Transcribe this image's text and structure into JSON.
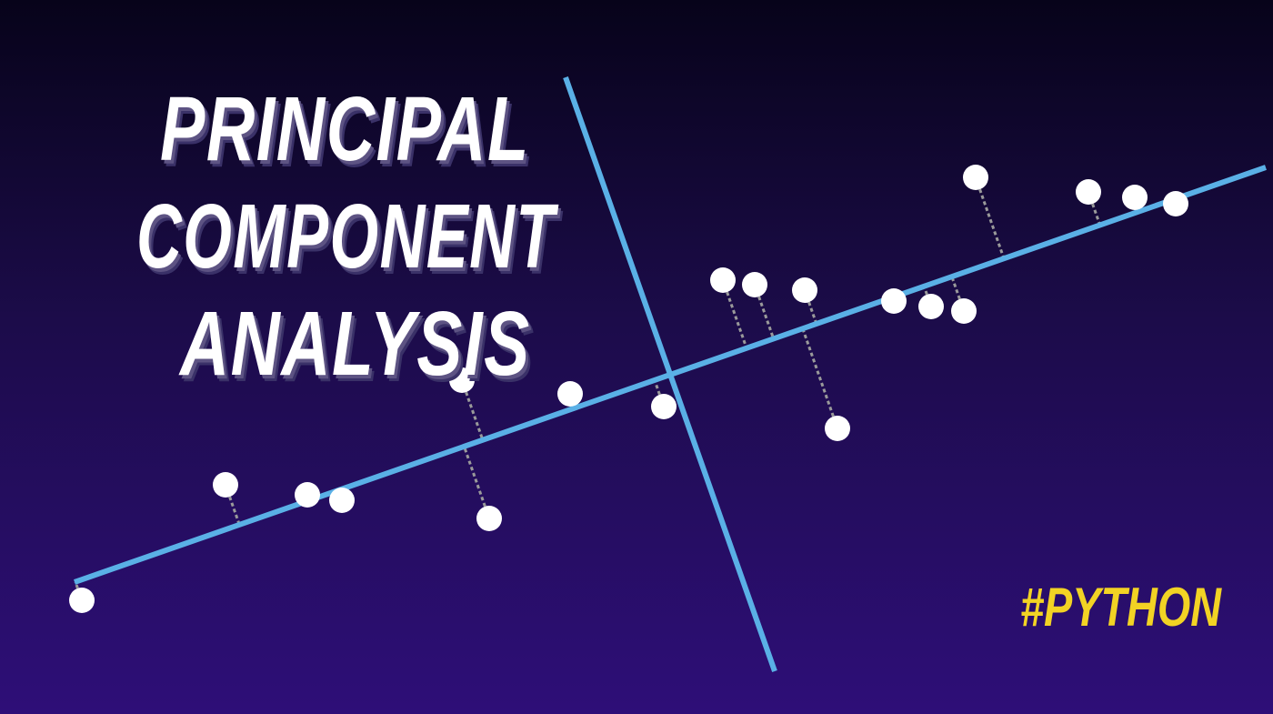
{
  "title": {
    "line1": "PRINCIPAL",
    "line2": "COMPONENT",
    "line3": "ANALYSIS"
  },
  "hashtag": "#PYTHON",
  "colors": {
    "background_top": "#07031a",
    "background_bottom": "#2e0e78",
    "axis": "#5ab0e6",
    "points": "#ffffff",
    "projection": "#9a9a9a",
    "title_text": "#ffffff",
    "title_shadow": "#5d5383",
    "hashtag": "#f2d324"
  }
}
